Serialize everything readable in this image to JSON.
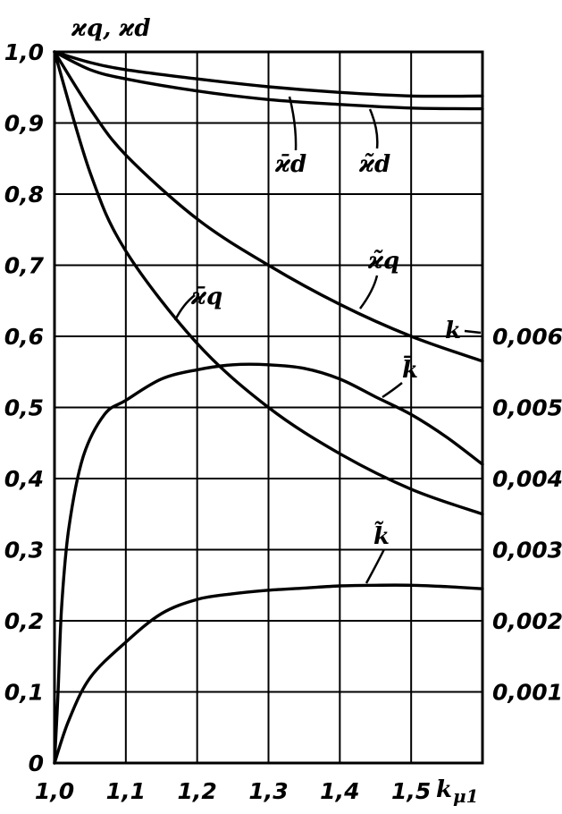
{
  "chart_data": {
    "type": "line",
    "xlabel": "k",
    "xlabel_sub": "μ1",
    "ylabel": "ϰq, ϰd",
    "xlim": [
      1.0,
      1.6
    ],
    "ylim": [
      0,
      1.0
    ],
    "y2lim": [
      0,
      0.01
    ],
    "x_ticks": [
      "1,0",
      "1,1",
      "1,2",
      "1,3",
      "1,4",
      "1,5"
    ],
    "y_ticks": [
      "0",
      "0,1",
      "0,2",
      "0,3",
      "0,4",
      "0,5",
      "0,6",
      "0,7",
      "0,8",
      "0,9",
      "1,0"
    ],
    "y2_ticks": [
      "0,001",
      "0,002",
      "0,003",
      "0,004",
      "0,005",
      "0,006"
    ],
    "y2_label": "k",
    "grid": true,
    "series": [
      {
        "name": "ϰ̄d",
        "axis": "left",
        "x": [
          1.0,
          1.05,
          1.1,
          1.2,
          1.3,
          1.4,
          1.5,
          1.6
        ],
        "y": [
          1.0,
          0.975,
          0.962,
          0.945,
          0.933,
          0.926,
          0.921,
          0.92
        ]
      },
      {
        "name": "ϰ̃d",
        "axis": "left",
        "x": [
          1.0,
          1.05,
          1.1,
          1.2,
          1.3,
          1.4,
          1.5,
          1.6
        ],
        "y": [
          1.0,
          0.985,
          0.975,
          0.962,
          0.951,
          0.943,
          0.938,
          0.938
        ]
      },
      {
        "name": "ϰ̃q",
        "axis": "left",
        "x": [
          1.0,
          1.05,
          1.1,
          1.2,
          1.3,
          1.4,
          1.5,
          1.6
        ],
        "y": [
          1.0,
          0.92,
          0.855,
          0.765,
          0.7,
          0.645,
          0.6,
          0.565
        ]
      },
      {
        "name": "ϰ̄q",
        "axis": "left",
        "x": [
          1.0,
          1.05,
          1.1,
          1.2,
          1.3,
          1.4,
          1.5,
          1.6
        ],
        "y": [
          1.0,
          0.83,
          0.72,
          0.59,
          0.5,
          0.435,
          0.385,
          0.35
        ]
      },
      {
        "name": "k̄",
        "axis": "right",
        "x": [
          1.0,
          1.005,
          1.01,
          1.02,
          1.04,
          1.07,
          1.1,
          1.15,
          1.2,
          1.25,
          1.3,
          1.35,
          1.4,
          1.45,
          1.5,
          1.55,
          1.6
        ],
        "y": [
          0.0,
          0.001,
          0.0022,
          0.0033,
          0.0043,
          0.0049,
          0.0051,
          0.0054,
          0.00553,
          0.0056,
          0.0056,
          0.00555,
          0.0054,
          0.00515,
          0.0049,
          0.00458,
          0.0042
        ]
      },
      {
        "name": "k̃",
        "axis": "right",
        "x": [
          1.0,
          1.02,
          1.05,
          1.1,
          1.15,
          1.2,
          1.25,
          1.3,
          1.35,
          1.4,
          1.45,
          1.5,
          1.55,
          1.6
        ],
        "y": [
          0.0,
          0.0006,
          0.0012,
          0.0017,
          0.0021,
          0.0023,
          0.00238,
          0.00243,
          0.00246,
          0.00249,
          0.0025,
          0.0025,
          0.00248,
          0.00245
        ]
      }
    ]
  }
}
